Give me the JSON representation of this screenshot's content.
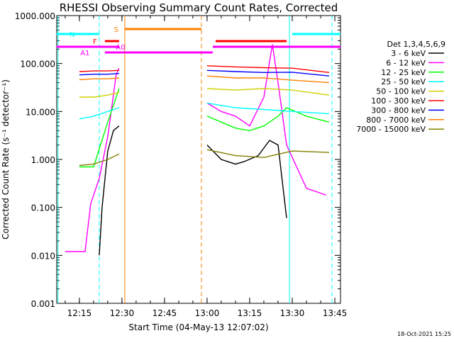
{
  "chart_data": {
    "type": "line",
    "title": "RHESSI Observing Summary Count Rates, Corrected",
    "xlabel": "Start Time (04-May-13 12:07:02)",
    "ylabel": "Corrected Count Rate (s⁻¹ detector⁻¹)",
    "y_scale": "log",
    "ylim": [
      0.001,
      1000
    ],
    "xlim": [
      "12:07:02",
      "13:47"
    ],
    "x_ticks": [
      "12:15",
      "12:30",
      "12:45",
      "13:00",
      "13:15",
      "13:30",
      "13:45"
    ],
    "y_ticks": [
      "0.001",
      "0.010",
      "0.100",
      "1.000",
      "10.000",
      "100.000",
      "1000.000"
    ],
    "timestamp": "18-Oct-2021 15:25",
    "legend_title": "Det 1,3,4,5,6,9",
    "legend_placement": "right",
    "series": [
      {
        "name": "3 - 6 keV",
        "color": "#000000",
        "x": [
          "12:22",
          "12:23",
          "12:25",
          "12:27",
          "12:29",
          "13:00",
          "13:05",
          "13:10",
          "13:13",
          "13:18",
          "13:22",
          "13:25",
          "13:28"
        ],
        "y": [
          0.01,
          0.1,
          1.5,
          4,
          5,
          2,
          1,
          0.8,
          0.9,
          1.2,
          2.5,
          2,
          0.06
        ]
      },
      {
        "name": "6 - 12 keV",
        "color": "#ff00ff",
        "x": [
          "12:10",
          "12:17",
          "12:19",
          "12:22",
          "12:25",
          "12:28",
          "12:29",
          "13:00",
          "13:05",
          "13:10",
          "13:15",
          "13:20",
          "13:23",
          "13:25",
          "13:28",
          "13:35",
          "13:42"
        ],
        "y": [
          0.012,
          0.012,
          0.12,
          0.4,
          3,
          60,
          80,
          15,
          10,
          8,
          5,
          20,
          250,
          40,
          2,
          0.25,
          0.18
        ]
      },
      {
        "name": "12 - 25 keV",
        "color": "#00ff00",
        "x": [
          "12:07",
          "12:15",
          "12:20",
          "12:25",
          "12:29",
          "13:00",
          "13:05",
          "13:10",
          "13:15",
          "13:20",
          "13:25",
          "13:28",
          "13:35",
          "13:43"
        ],
        "y": [
          0.8,
          0.7,
          0.7,
          6,
          30,
          8,
          6,
          4.5,
          4,
          5,
          8,
          12,
          8,
          6
        ]
      },
      {
        "name": "25 - 50 keV",
        "color": "#00ffff",
        "x": [
          "12:07",
          "12:15",
          "12:20",
          "12:25",
          "12:29",
          "13:00",
          "13:10",
          "13:20",
          "13:30",
          "13:43"
        ],
        "y": [
          7,
          7,
          8,
          10,
          12,
          15,
          12,
          11,
          10,
          9
        ]
      },
      {
        "name": "50 - 100 keV",
        "color": "#d0d000",
        "x": [
          "12:07",
          "12:15",
          "12:20",
          "12:25",
          "12:29",
          "13:00",
          "13:10",
          "13:20",
          "13:30",
          "13:43"
        ],
        "y": [
          22,
          20,
          20,
          22,
          25,
          30,
          28,
          30,
          28,
          22
        ]
      },
      {
        "name": "100 - 300 keV",
        "color": "#ff0000",
        "x": [
          "12:07",
          "12:15",
          "12:20",
          "12:25",
          "12:29",
          "13:00",
          "13:10",
          "13:20",
          "13:30",
          "13:43"
        ],
        "y": [
          65,
          68,
          70,
          70,
          72,
          90,
          85,
          82,
          80,
          65
        ]
      },
      {
        "name": "300 - 800 keV",
        "color": "#0000ff",
        "x": [
          "12:07",
          "12:15",
          "12:20",
          "12:25",
          "12:29",
          "13:00",
          "13:10",
          "13:20",
          "13:30",
          "13:43"
        ],
        "y": [
          55,
          58,
          60,
          60,
          62,
          72,
          68,
          65,
          66,
          55
        ]
      },
      {
        "name": "800 - 7000 keV",
        "color": "#ff8000",
        "x": [
          "12:07",
          "12:15",
          "12:20",
          "12:25",
          "12:29",
          "13:00",
          "13:10",
          "13:20",
          "13:30",
          "13:43"
        ],
        "y": [
          45,
          46,
          48,
          48,
          50,
          55,
          50,
          50,
          45,
          40
        ]
      },
      {
        "name": "7000 - 15000 keV",
        "color": "#808000",
        "x": [
          "12:07",
          "12:15",
          "12:20",
          "12:25",
          "12:29",
          "13:00",
          "13:10",
          "13:20",
          "13:30",
          "13:43"
        ],
        "y": [
          0.7,
          0.75,
          0.8,
          1.0,
          1.3,
          1.6,
          1.2,
          1.1,
          1.5,
          1.4
        ]
      }
    ],
    "flag_bars": [
      {
        "label": "N",
        "color": "#00ffff",
        "segments": [
          [
            "12:07",
            "12:22"
          ],
          [
            "13:30",
            "13:47"
          ]
        ]
      },
      {
        "label": "S",
        "color": "#ff8000",
        "segments": [
          [
            "12:31",
            "12:58"
          ]
        ]
      },
      {
        "label": "F",
        "color": "#ff0000",
        "segments": [
          [
            "12:24",
            "12:29"
          ],
          [
            "13:03",
            "13:28"
          ]
        ]
      },
      {
        "label": "A0",
        "color": "#ff00ff",
        "segments": [
          [
            "12:07",
            "12:29"
          ],
          [
            "13:02",
            "13:47"
          ]
        ]
      },
      {
        "label": "A1",
        "color": "#ff00ff",
        "segments": [
          [
            "12:24",
            "13:02"
          ]
        ]
      }
    ],
    "markers": [
      {
        "time": "12:07:30",
        "color": "#00ffff",
        "style": "solid"
      },
      {
        "time": "12:22",
        "color": "#00ffff",
        "style": "dashed"
      },
      {
        "time": "12:31",
        "color": "#ff8000",
        "style": "solid"
      },
      {
        "time": "12:58",
        "color": "#ff8000",
        "style": "dashed"
      },
      {
        "time": "13:29",
        "color": "#00ffff",
        "style": "solid"
      },
      {
        "time": "13:44",
        "color": "#00ffff",
        "style": "dashed"
      }
    ]
  }
}
